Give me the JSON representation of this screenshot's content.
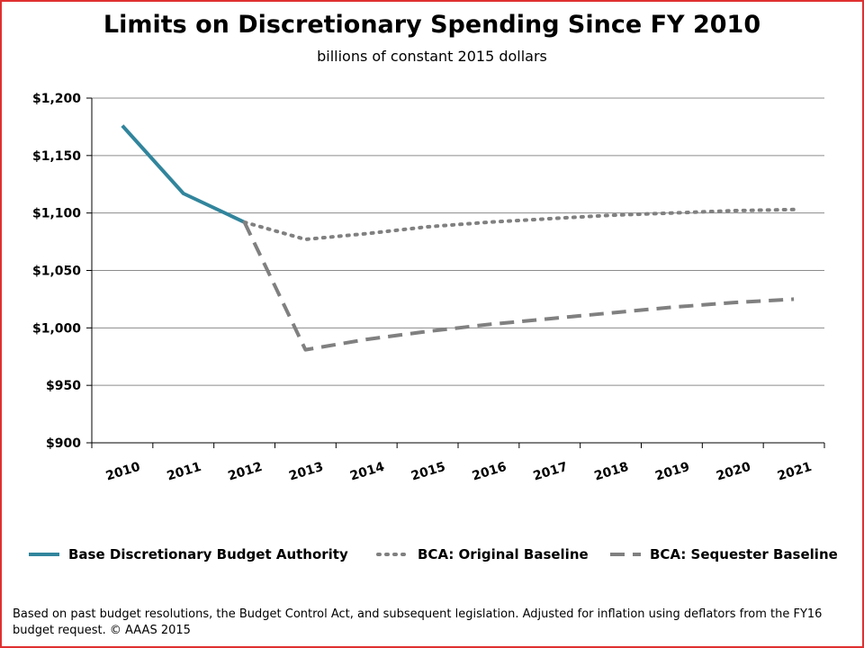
{
  "chart_data": {
    "type": "line",
    "title": "Limits on Discretionary Spending Since FY 2010",
    "subtitle": "billions of constant 2015 dollars",
    "xlabel": "",
    "ylabel": "",
    "categories": [
      "2010",
      "2011",
      "2012",
      "2013",
      "2014",
      "2015",
      "2016",
      "2017",
      "2018",
      "2019",
      "2020",
      "2021"
    ],
    "ylim": [
      900,
      1200
    ],
    "y_ticks": [
      {
        "value": 900,
        "label": "$900"
      },
      {
        "value": 950,
        "label": "$950"
      },
      {
        "value": 1000,
        "label": "$1,000"
      },
      {
        "value": 1050,
        "label": "$1,050"
      },
      {
        "value": 1100,
        "label": "$1,100"
      },
      {
        "value": 1150,
        "label": "$1,150"
      },
      {
        "value": 1200,
        "label": "$1,200"
      }
    ],
    "grid": true,
    "legend_position": "bottom",
    "series": [
      {
        "name": "Base Discretionary Budget Authority",
        "style": "solid",
        "color": "#31859c",
        "values": [
          1176,
          1117,
          1092,
          null,
          null,
          null,
          null,
          null,
          null,
          null,
          null,
          null
        ]
      },
      {
        "name": "BCA: Original Baseline",
        "style": "dotted",
        "color": "#808080",
        "values": [
          null,
          null,
          1092,
          1077,
          1082,
          1088,
          1092,
          1095,
          1098,
          1100,
          1102,
          1103
        ]
      },
      {
        "name": "BCA: Sequester Baseline",
        "style": "dashed",
        "color": "#808080",
        "values": [
          null,
          null,
          1092,
          981,
          990,
          997,
          1003,
          1008,
          1013,
          1018,
          1022,
          1025
        ]
      }
    ]
  },
  "footnote": "Based on past budget resolutions, the Budget Control Act, and subsequent legislation.  Adjusted for inflation using deflators from the FY16 budget request. © AAAS 2015"
}
